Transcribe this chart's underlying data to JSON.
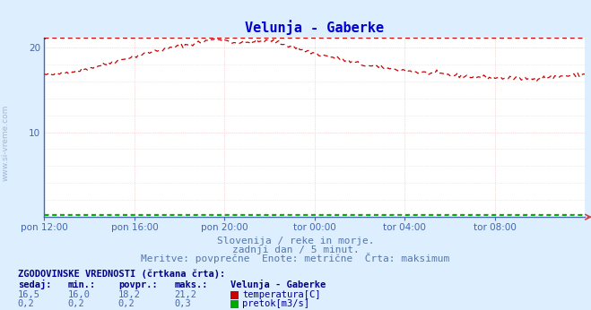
{
  "title": "Velunja - Gaberke",
  "fig_bg_color": "#ddeeff",
  "plot_bg_color": "#ffffff",
  "grid_color": "#dddddd",
  "grid_color_red": "#ffcccc",
  "spine_color": "#4466bb",
  "ylabel_color": "#4466aa",
  "xlabel_color": "#4466aa",
  "title_color": "#0000cc",
  "text_color": "#5577aa",
  "watermark_color": "#5577aa",
  "subtitle_lines": [
    "Slovenija / reke in morje.",
    "zadnji dan / 5 minut.",
    "Meritve: povprečne  Enote: metrične  Črta: maksimum"
  ],
  "xtick_labels": [
    "pon 12:00",
    "pon 16:00",
    "pon 20:00",
    "tor 00:00",
    "tor 04:00",
    "tor 08:00"
  ],
  "xtick_positions": [
    0,
    48,
    96,
    144,
    192,
    240
  ],
  "n_points": 289,
  "temp_color": "#cc0000",
  "flow_color": "#00aa00",
  "legend_title": "ZGODOVINSKE VREDNOSTI (črtkana črta):",
  "legend_headers": [
    "sedaj:",
    "min.:",
    "povpr.:",
    "maks.:",
    "Velunja - Gaberke"
  ],
  "temp_stats": [
    16.5,
    16.0,
    18.2,
    21.2
  ],
  "flow_stats": [
    0.2,
    0.2,
    0.2,
    0.3
  ],
  "temp_label": "temperatura[C]",
  "flow_label": "pretok[m3/s]",
  "temp_max_line": 21.2,
  "flow_max_line": 0.3,
  "ylim": [
    0,
    21.2
  ],
  "yticks": [
    10,
    20
  ],
  "arrow_color": "#cc4444"
}
